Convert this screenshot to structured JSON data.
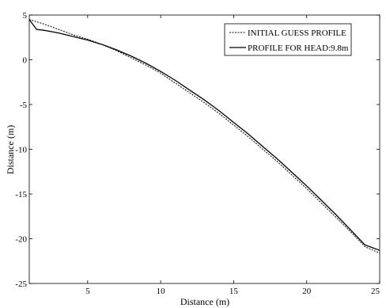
{
  "chart_data": {
    "type": "line",
    "title": "",
    "xlabel": "Distance (m)",
    "ylabel": "Distance (m)",
    "xlim": [
      1,
      25
    ],
    "ylim": [
      -25,
      5
    ],
    "xticks": [
      5,
      10,
      15,
      20,
      25
    ],
    "yticks": [
      5,
      0,
      -5,
      -10,
      -15,
      -20,
      -25
    ],
    "grid": false,
    "legend_position": "top-right",
    "series": [
      {
        "name": "INITIAL GUESS PROFILE",
        "style": "dashed",
        "color": "#000000",
        "x": [
          1,
          2,
          3,
          4,
          5,
          6,
          7,
          8,
          9,
          10,
          11,
          12,
          13,
          14,
          15,
          16,
          17,
          18,
          19,
          20,
          21,
          22,
          23,
          24,
          25
        ],
        "y": [
          4.5,
          4.0,
          3.4,
          2.8,
          2.3,
          1.7,
          1.0,
          0.2,
          -0.6,
          -1.5,
          -2.6,
          -3.7,
          -4.8,
          -6.0,
          -7.3,
          -8.6,
          -10.0,
          -11.4,
          -12.9,
          -14.4,
          -16.0,
          -17.6,
          -19.2,
          -20.9,
          -21.6
        ]
      },
      {
        "name": "PROFILE FOR HEAD:9.8m",
        "style": "solid",
        "color": "#000000",
        "x": [
          1,
          1.5,
          2,
          3,
          4,
          5,
          6,
          7,
          8,
          9,
          10,
          11,
          12,
          13,
          14,
          15,
          16,
          17,
          18,
          19,
          20,
          21,
          22,
          23,
          24,
          25
        ],
        "y": [
          4.5,
          3.4,
          3.3,
          3.0,
          2.6,
          2.2,
          1.7,
          1.1,
          0.4,
          -0.4,
          -1.3,
          -2.3,
          -3.4,
          -4.5,
          -5.7,
          -7.0,
          -8.3,
          -9.7,
          -11.1,
          -12.6,
          -14.1,
          -15.7,
          -17.3,
          -19.0,
          -20.7,
          -21.3
        ]
      }
    ]
  }
}
